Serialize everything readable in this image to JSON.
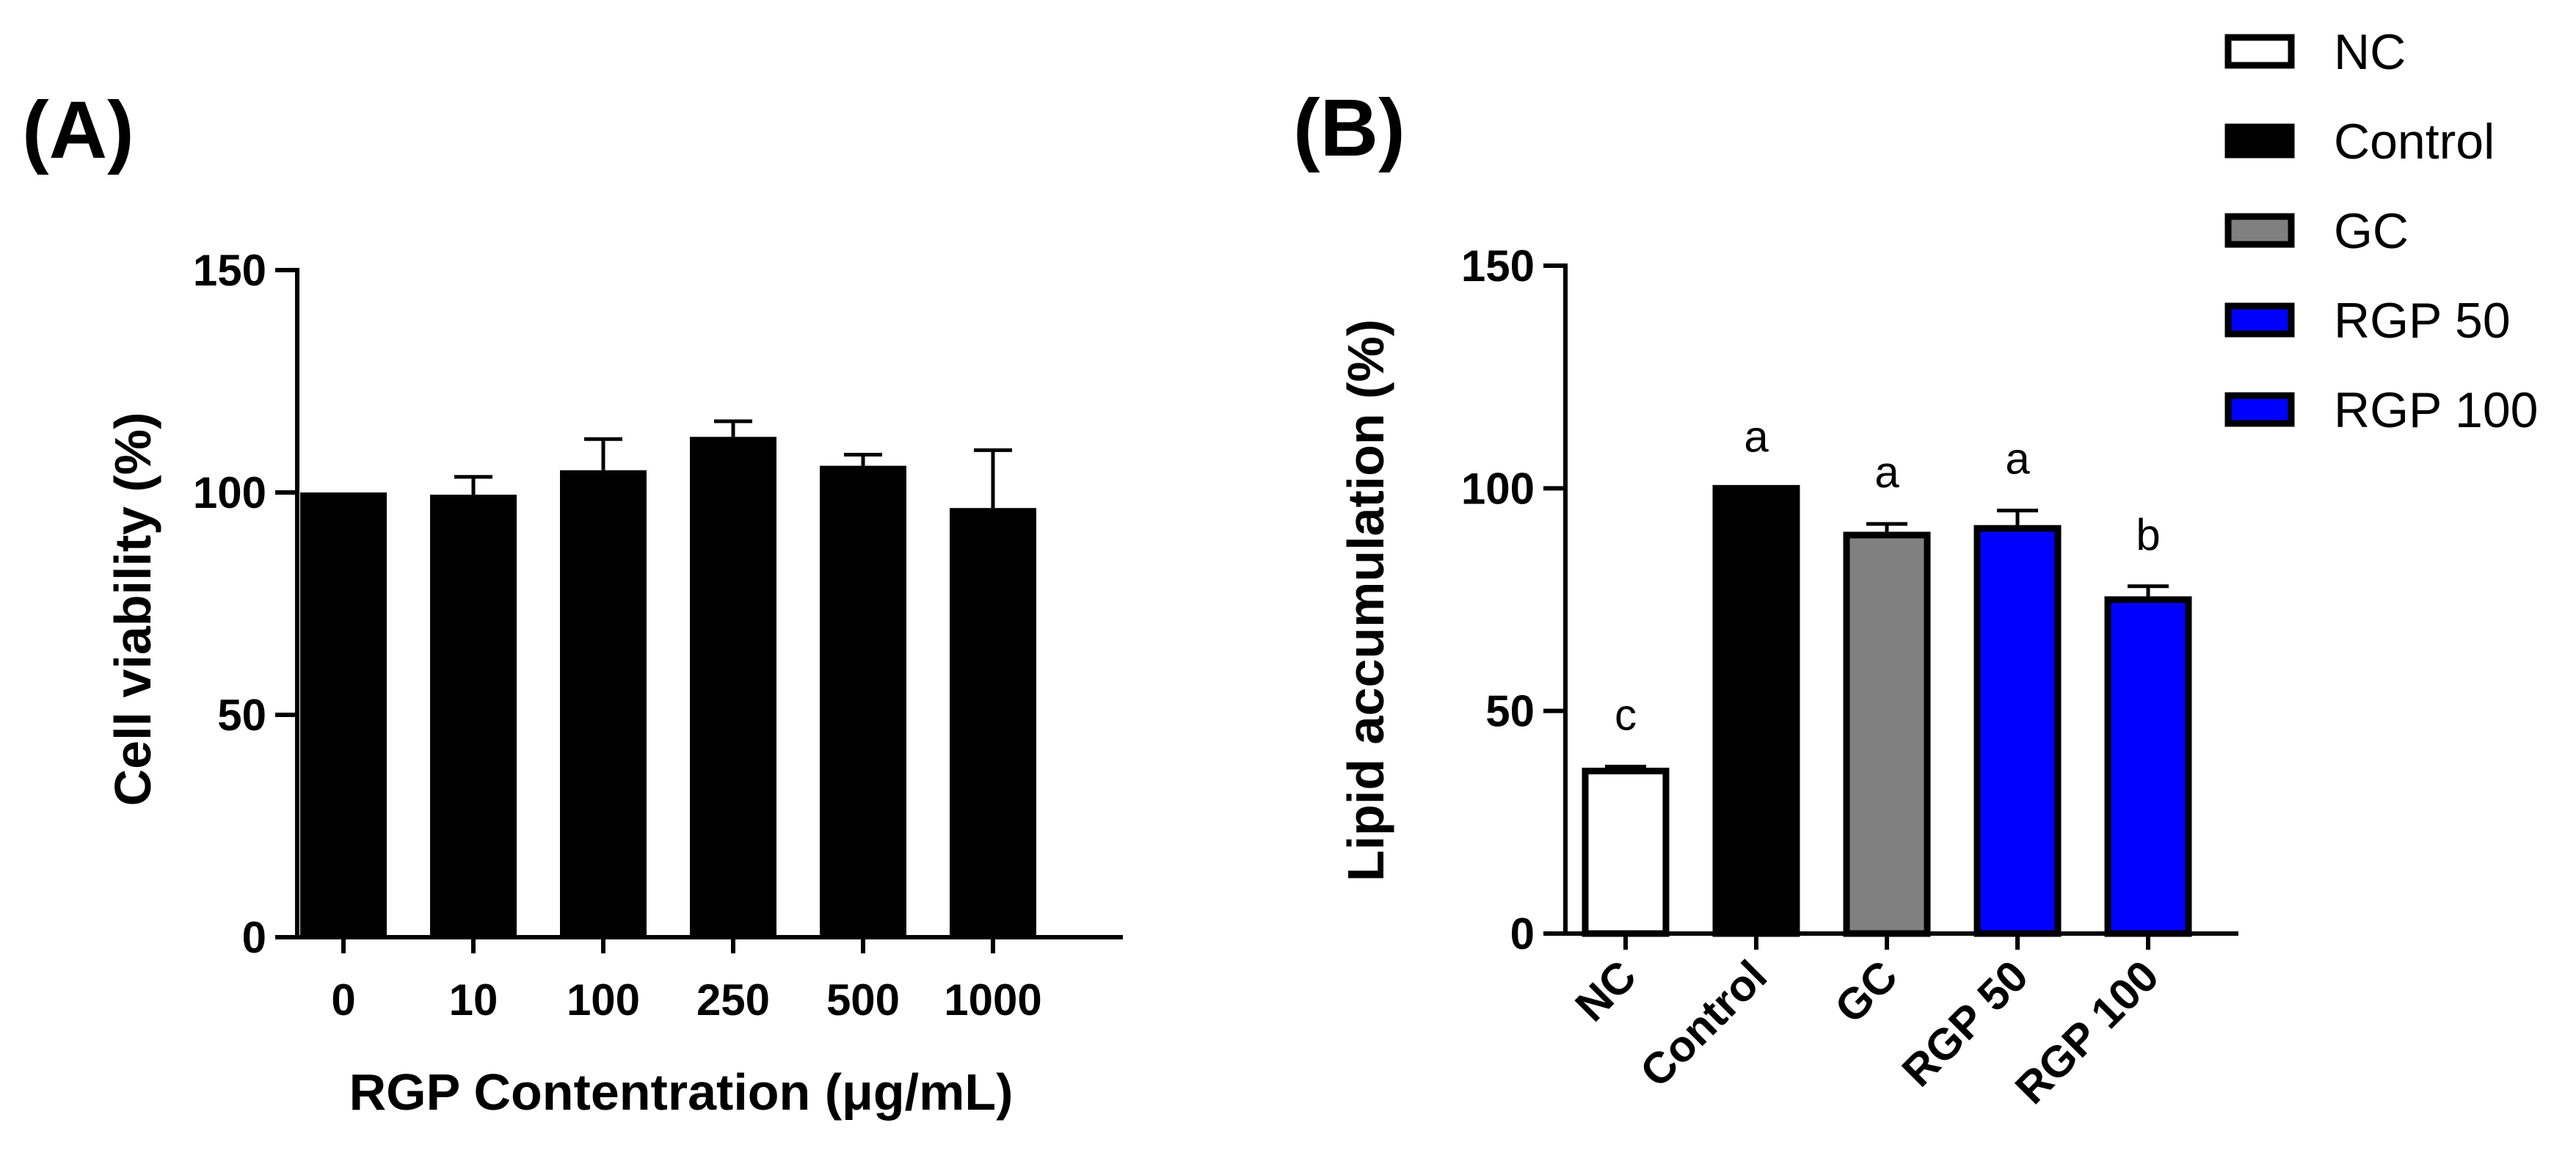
{
  "chart_data": [
    {
      "panel_label": "(A)",
      "type": "bar",
      "categories": [
        "0",
        "10",
        "100",
        "250",
        "500",
        "1000"
      ],
      "values": [
        100,
        99.5,
        105,
        112.5,
        106,
        96.5
      ],
      "errors": [
        0,
        4,
        7,
        3.5,
        2.5,
        13
      ],
      "bar_color": "#000000",
      "xlabel": "RGP Contentration  (μg/mL)",
      "ylabel": "Cell viability  (%)",
      "ylim": [
        0,
        150
      ],
      "yticks": [
        0,
        50,
        100,
        150
      ],
      "grid": false
    },
    {
      "panel_label": "(B)",
      "type": "bar",
      "categories": [
        "NC",
        "Control",
        "GC",
        "RGP 50",
        "RGP 100"
      ],
      "values": [
        36.5,
        100,
        89.5,
        91,
        75
      ],
      "errors": [
        1,
        0,
        2.5,
        4,
        3
      ],
      "significance": [
        "c",
        "a",
        "a",
        "a",
        "b"
      ],
      "bar_colors": [
        "#ffffff",
        "#000000",
        "#808080",
        "#0000ff",
        "#0000ff"
      ],
      "xlabel": "",
      "ylabel": "Lipid accumulation (%)",
      "ylim": [
        0,
        150
      ],
      "yticks": [
        0,
        50,
        100,
        150
      ],
      "grid": false,
      "legend": {
        "position": "top-right",
        "entries": [
          {
            "label": "NC",
            "color": "#ffffff"
          },
          {
            "label": "Control",
            "color": "#000000"
          },
          {
            "label": "GC",
            "color": "#808080"
          },
          {
            "label": "RGP 50",
            "color": "#0000ff"
          },
          {
            "label": "RGP 100",
            "color": "#0000ff"
          }
        ]
      }
    }
  ]
}
